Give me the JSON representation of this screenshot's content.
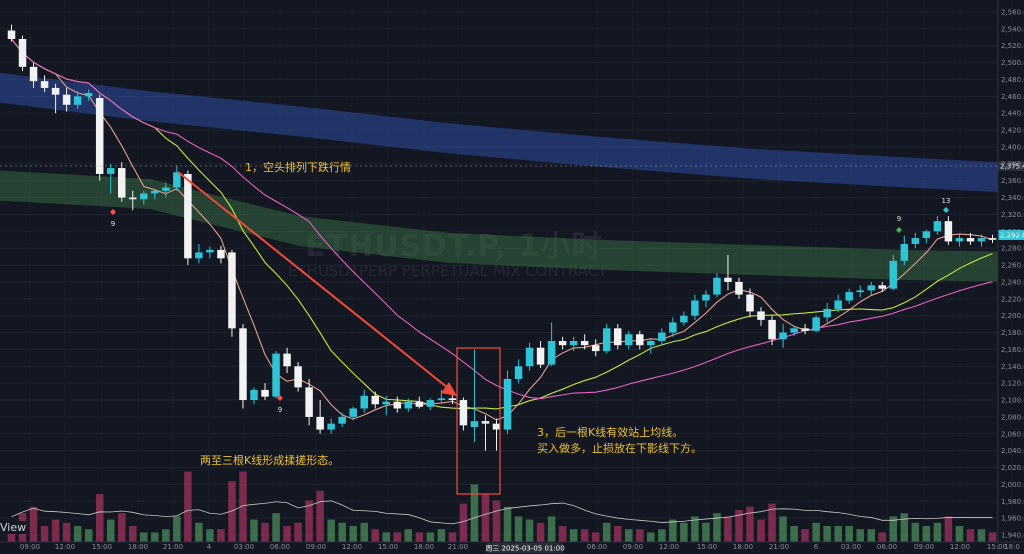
{
  "chart_data": {
    "type": "candlestick",
    "watermark_symbol": "ETHUSDT.P, 1小时",
    "watermark_name": "ETHUSDTPERP PERPETUAL MIX CONTRACT",
    "y_ticks": [
      "2,560.00",
      "2,540.00",
      "2,520.00",
      "2,500.00",
      "2,480.00",
      "2,460.00",
      "2,440.00",
      "2,420.00",
      "2,400.00",
      "2,380.00",
      "2,360.00",
      "2,340.00",
      "2,320.00",
      "2,300.00",
      "2,280.00",
      "2,260.00",
      "2,240.00",
      "2,220.00",
      "2,200.00",
      "2,180.00",
      "2,160.00",
      "2,140.00",
      "2,120.00",
      "2,100.00",
      "2,080.00",
      "2,060.00",
      "2,040.00",
      "2,020.00",
      "2,000.00",
      "1,980.00",
      "1,960.00",
      "1,940.00"
    ],
    "x_ticks": [
      "09:00",
      "12:00",
      "15:00",
      "18:00",
      "21:00",
      "4",
      "03:00",
      "06:00",
      "09:00",
      "12:00",
      "15:00",
      "18:00",
      "21:00",
      "06:00",
      "09:00",
      "12:00",
      "15:00",
      "18:00",
      "21:00",
      "6",
      "03:00",
      "06:00",
      "09:00",
      "12:00",
      "15:00",
      "18:0"
    ],
    "x_cursor_label": "周三 2025-03-05  01:00",
    "price_labels": [
      "2,375.45",
      "2,292.80"
    ],
    "annotations": {
      "a1": "1，空头排列下跌行情",
      "a2": "两至三根K线形成揉搓形态。",
      "a3_line1": "3，后一根K线有效站上均线。",
      "a3_line2": "买入做多，止损放在下影线下方。"
    },
    "markers": [
      "9",
      "9",
      "9",
      "13"
    ],
    "candles": [
      {
        "o": 2538,
        "h": 2545,
        "l": 2525,
        "c": 2528,
        "v": 0.6
      },
      {
        "o": 2528,
        "h": 2532,
        "l": 2490,
        "c": 2495,
        "v": 0.9
      },
      {
        "o": 2495,
        "h": 2500,
        "l": 2470,
        "c": 2478,
        "v": 1.1
      },
      {
        "o": 2478,
        "h": 2485,
        "l": 2465,
        "c": 2470,
        "v": 0.5
      },
      {
        "o": 2470,
        "h": 2475,
        "l": 2440,
        "c": 2462,
        "v": 0.7
      },
      {
        "o": 2462,
        "h": 2470,
        "l": 2442,
        "c": 2450,
        "v": 0.6
      },
      {
        "o": 2450,
        "h": 2466,
        "l": 2445,
        "c": 2460,
        "v": 0.5
      },
      {
        "o": 2460,
        "h": 2468,
        "l": 2455,
        "c": 2464,
        "v": 0.4
      },
      {
        "o": 2458,
        "h": 2462,
        "l": 2360,
        "c": 2368,
        "v": 1.5
      },
      {
        "o": 2368,
        "h": 2380,
        "l": 2345,
        "c": 2375,
        "v": 0.7
      },
      {
        "o": 2375,
        "h": 2382,
        "l": 2335,
        "c": 2340,
        "v": 0.9
      },
      {
        "o": 2340,
        "h": 2348,
        "l": 2325,
        "c": 2338,
        "v": 0.5
      },
      {
        "o": 2338,
        "h": 2348,
        "l": 2332,
        "c": 2345,
        "v": 0.3
      },
      {
        "o": 2345,
        "h": 2350,
        "l": 2338,
        "c": 2348,
        "v": 0.3
      },
      {
        "o": 2348,
        "h": 2358,
        "l": 2340,
        "c": 2352,
        "v": 0.4
      },
      {
        "o": 2352,
        "h": 2378,
        "l": 2348,
        "c": 2370,
        "v": 0.8
      },
      {
        "o": 2368,
        "h": 2372,
        "l": 2260,
        "c": 2268,
        "v": 2.2
      },
      {
        "o": 2268,
        "h": 2285,
        "l": 2262,
        "c": 2275,
        "v": 0.6
      },
      {
        "o": 2275,
        "h": 2282,
        "l": 2268,
        "c": 2278,
        "v": 0.4
      },
      {
        "o": 2278,
        "h": 2283,
        "l": 2262,
        "c": 2268,
        "v": 0.4
      },
      {
        "o": 2275,
        "h": 2278,
        "l": 2175,
        "c": 2185,
        "v": 1.9
      },
      {
        "o": 2185,
        "h": 2190,
        "l": 2090,
        "c": 2100,
        "v": 2.2
      },
      {
        "o": 2100,
        "h": 2115,
        "l": 2095,
        "c": 2112,
        "v": 0.7
      },
      {
        "o": 2112,
        "h": 2120,
        "l": 2100,
        "c": 2104,
        "v": 0.6
      },
      {
        "o": 2104,
        "h": 2158,
        "l": 2102,
        "c": 2155,
        "v": 0.9
      },
      {
        "o": 2155,
        "h": 2162,
        "l": 2132,
        "c": 2140,
        "v": 0.5
      },
      {
        "o": 2140,
        "h": 2145,
        "l": 2110,
        "c": 2115,
        "v": 0.6
      },
      {
        "o": 2115,
        "h": 2125,
        "l": 2070,
        "c": 2080,
        "v": 1.3
      },
      {
        "o": 2080,
        "h": 2100,
        "l": 2060,
        "c": 2065,
        "v": 1.6
      },
      {
        "o": 2065,
        "h": 2078,
        "l": 2060,
        "c": 2072,
        "v": 0.7
      },
      {
        "o": 2072,
        "h": 2085,
        "l": 2068,
        "c": 2080,
        "v": 0.6
      },
      {
        "o": 2080,
        "h": 2092,
        "l": 2076,
        "c": 2090,
        "v": 0.5
      },
      {
        "o": 2090,
        "h": 2112,
        "l": 2085,
        "c": 2105,
        "v": 0.6
      },
      {
        "o": 2105,
        "h": 2110,
        "l": 2090,
        "c": 2095,
        "v": 0.4
      },
      {
        "o": 2095,
        "h": 2105,
        "l": 2082,
        "c": 2098,
        "v": 0.3
      },
      {
        "o": 2098,
        "h": 2104,
        "l": 2085,
        "c": 2090,
        "v": 0.3
      },
      {
        "o": 2090,
        "h": 2102,
        "l": 2086,
        "c": 2098,
        "v": 0.4
      },
      {
        "o": 2098,
        "h": 2104,
        "l": 2090,
        "c": 2092,
        "v": 0.3
      },
      {
        "o": 2092,
        "h": 2102,
        "l": 2088,
        "c": 2100,
        "v": 0.3
      },
      {
        "o": 2100,
        "h": 2112,
        "l": 2096,
        "c": 2102,
        "v": 0.4
      },
      {
        "o": 2102,
        "h": 2106,
        "l": 2095,
        "c": 2100,
        "v": 0.3
      },
      {
        "o": 2100,
        "h": 2103,
        "l": 2064,
        "c": 2070,
        "v": 1.2
      },
      {
        "o": 2068,
        "h": 2160,
        "l": 2050,
        "c": 2075,
        "v": 1.8
      },
      {
        "o": 2075,
        "h": 2082,
        "l": 2040,
        "c": 2072,
        "v": 1.5
      },
      {
        "o": 2072,
        "h": 2078,
        "l": 2040,
        "c": 2065,
        "v": 1.3
      },
      {
        "o": 2065,
        "h": 2135,
        "l": 2060,
        "c": 2125,
        "v": 1.1
      },
      {
        "o": 2125,
        "h": 2148,
        "l": 2120,
        "c": 2140,
        "v": 0.8
      },
      {
        "o": 2140,
        "h": 2168,
        "l": 2135,
        "c": 2162,
        "v": 0.7
      },
      {
        "o": 2162,
        "h": 2170,
        "l": 2138,
        "c": 2142,
        "v": 0.6
      },
      {
        "o": 2142,
        "h": 2192,
        "l": 2140,
        "c": 2170,
        "v": 0.8
      },
      {
        "o": 2170,
        "h": 2175,
        "l": 2160,
        "c": 2165,
        "v": 0.5
      },
      {
        "o": 2165,
        "h": 2175,
        "l": 2158,
        "c": 2170,
        "v": 0.4
      },
      {
        "o": 2170,
        "h": 2178,
        "l": 2160,
        "c": 2165,
        "v": 0.4
      },
      {
        "o": 2165,
        "h": 2172,
        "l": 2152,
        "c": 2158,
        "v": 0.3
      },
      {
        "o": 2158,
        "h": 2190,
        "l": 2155,
        "c": 2185,
        "v": 0.6
      },
      {
        "o": 2185,
        "h": 2190,
        "l": 2160,
        "c": 2165,
        "v": 0.5
      },
      {
        "o": 2165,
        "h": 2182,
        "l": 2160,
        "c": 2178,
        "v": 0.4
      },
      {
        "o": 2178,
        "h": 2182,
        "l": 2160,
        "c": 2165,
        "v": 0.4
      },
      {
        "o": 2165,
        "h": 2172,
        "l": 2155,
        "c": 2170,
        "v": 0.3
      },
      {
        "o": 2170,
        "h": 2185,
        "l": 2165,
        "c": 2180,
        "v": 0.4
      },
      {
        "o": 2180,
        "h": 2198,
        "l": 2175,
        "c": 2192,
        "v": 0.7
      },
      {
        "o": 2192,
        "h": 2205,
        "l": 2188,
        "c": 2200,
        "v": 0.6
      },
      {
        "o": 2200,
        "h": 2225,
        "l": 2195,
        "c": 2218,
        "v": 0.8
      },
      {
        "o": 2218,
        "h": 2230,
        "l": 2210,
        "c": 2225,
        "v": 0.6
      },
      {
        "o": 2225,
        "h": 2250,
        "l": 2222,
        "c": 2245,
        "v": 0.9
      },
      {
        "o": 2245,
        "h": 2272,
        "l": 2230,
        "c": 2240,
        "v": 0.8
      },
      {
        "o": 2240,
        "h": 2245,
        "l": 2220,
        "c": 2225,
        "v": 1.0
      },
      {
        "o": 2225,
        "h": 2232,
        "l": 2198,
        "c": 2205,
        "v": 1.1
      },
      {
        "o": 2205,
        "h": 2210,
        "l": 2188,
        "c": 2195,
        "v": 0.7
      },
      {
        "o": 2195,
        "h": 2200,
        "l": 2165,
        "c": 2172,
        "v": 1.2
      },
      {
        "o": 2172,
        "h": 2190,
        "l": 2162,
        "c": 2180,
        "v": 0.8
      },
      {
        "o": 2180,
        "h": 2188,
        "l": 2176,
        "c": 2185,
        "v": 0.5
      },
      {
        "o": 2185,
        "h": 2190,
        "l": 2178,
        "c": 2182,
        "v": 0.4
      },
      {
        "o": 2182,
        "h": 2200,
        "l": 2180,
        "c": 2198,
        "v": 0.6
      },
      {
        "o": 2198,
        "h": 2215,
        "l": 2192,
        "c": 2208,
        "v": 0.5
      },
      {
        "o": 2208,
        "h": 2225,
        "l": 2204,
        "c": 2218,
        "v": 0.5
      },
      {
        "o": 2218,
        "h": 2232,
        "l": 2214,
        "c": 2228,
        "v": 0.5
      },
      {
        "o": 2228,
        "h": 2236,
        "l": 2222,
        "c": 2230,
        "v": 0.4
      },
      {
        "o": 2230,
        "h": 2240,
        "l": 2225,
        "c": 2236,
        "v": 0.4
      },
      {
        "o": 2236,
        "h": 2240,
        "l": 2228,
        "c": 2232,
        "v": 0.3
      },
      {
        "o": 2232,
        "h": 2272,
        "l": 2230,
        "c": 2265,
        "v": 0.8
      },
      {
        "o": 2265,
        "h": 2295,
        "l": 2260,
        "c": 2285,
        "v": 0.9
      },
      {
        "o": 2285,
        "h": 2298,
        "l": 2280,
        "c": 2292,
        "v": 0.6
      },
      {
        "o": 2292,
        "h": 2302,
        "l": 2286,
        "c": 2300,
        "v": 0.5
      },
      {
        "o": 2300,
        "h": 2318,
        "l": 2296,
        "c": 2312,
        "v": 0.6
      },
      {
        "o": 2312,
        "h": 2318,
        "l": 2284,
        "c": 2288,
        "v": 0.8
      },
      {
        "o": 2288,
        "h": 2296,
        "l": 2282,
        "c": 2292,
        "v": 0.5
      },
      {
        "o": 2292,
        "h": 2298,
        "l": 2284,
        "c": 2288,
        "v": 0.4
      },
      {
        "o": 2288,
        "h": 2296,
        "l": 2282,
        "c": 2292,
        "v": 0.4
      },
      {
        "o": 2292,
        "h": 2296,
        "l": 2286,
        "c": 2290,
        "v": 0.3
      }
    ]
  }
}
